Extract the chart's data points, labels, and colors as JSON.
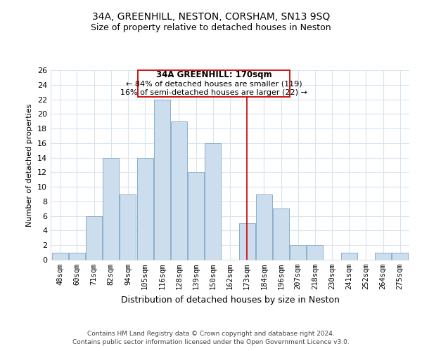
{
  "title": "34A, GREENHILL, NESTON, CORSHAM, SN13 9SQ",
  "subtitle": "Size of property relative to detached houses in Neston",
  "xlabel": "Distribution of detached houses by size in Neston",
  "ylabel": "Number of detached properties",
  "bar_color": "#ccdded",
  "bar_edgecolor": "#8ab0cc",
  "categories": [
    "48sqm",
    "60sqm",
    "71sqm",
    "82sqm",
    "94sqm",
    "105sqm",
    "116sqm",
    "128sqm",
    "139sqm",
    "150sqm",
    "162sqm",
    "173sqm",
    "184sqm",
    "196sqm",
    "207sqm",
    "218sqm",
    "230sqm",
    "241sqm",
    "252sqm",
    "264sqm",
    "275sqm"
  ],
  "values": [
    1,
    1,
    6,
    14,
    9,
    14,
    22,
    19,
    12,
    16,
    0,
    5,
    9,
    7,
    2,
    2,
    0,
    1,
    0,
    1,
    1
  ],
  "ylim": [
    0,
    26
  ],
  "yticks": [
    0,
    2,
    4,
    6,
    8,
    10,
    12,
    14,
    16,
    18,
    20,
    22,
    24,
    26
  ],
  "vline_x": 11.0,
  "annotation_title": "34A GREENHILL: 170sqm",
  "annotation_line1": "← 84% of detached houses are smaller (119)",
  "annotation_line2": "16% of semi-detached houses are larger (22) →",
  "footer1": "Contains HM Land Registry data © Crown copyright and database right 2024.",
  "footer2": "Contains public sector information licensed under the Open Government Licence v3.0.",
  "background_color": "#ffffff",
  "grid_color": "#d8e4ee",
  "vline_color": "#cc0000",
  "title_fontsize": 10,
  "subtitle_fontsize": 9,
  "xlabel_fontsize": 9,
  "ylabel_fontsize": 8,
  "tick_fontsize": 7.5,
  "annotation_title_fontsize": 8.5,
  "annotation_body_fontsize": 8,
  "footer_fontsize": 6.5
}
